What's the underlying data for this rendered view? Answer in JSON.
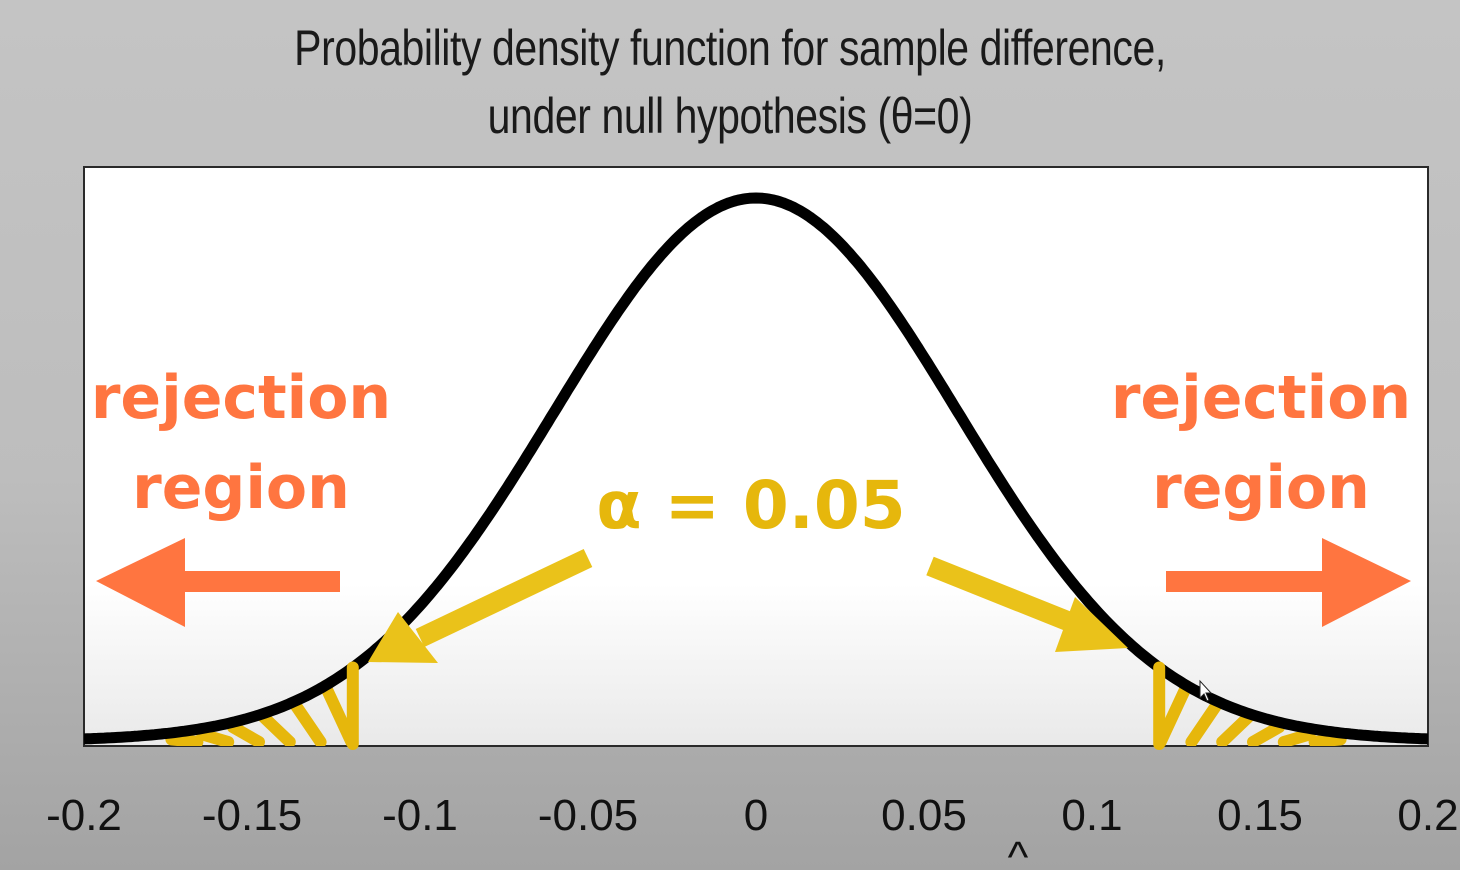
{
  "title_lines": [
    "Probability density function for sample difference,",
    "under null hypothesis (θ=0)"
  ],
  "chart_data": {
    "type": "area",
    "title": "Probability density function for sample difference, under null hypothesis (θ=0)",
    "distribution": "normal",
    "mean": 0,
    "sd": 0.06,
    "xlim": [
      -0.2,
      0.2
    ],
    "xticks": [
      -0.2,
      -0.15,
      -0.1,
      -0.05,
      0,
      0.05,
      0.1,
      0.15,
      0.2
    ],
    "xtick_labels": [
      "-0.2",
      "-0.15",
      "-0.1",
      "-0.05",
      "0",
      "0.05",
      "0.1",
      "0.15",
      "0.2"
    ],
    "critical_values": [
      -0.12,
      0.12
    ],
    "shaded_regions": [
      {
        "from": -0.2,
        "to": -0.12
      },
      {
        "from": 0.12,
        "to": 0.2
      }
    ],
    "annotations": {
      "alpha": "α = 0.05",
      "rejection_left": [
        "rejection",
        "region"
      ],
      "rejection_right": [
        "rejection",
        "region"
      ],
      "xlabel_glyph": "^"
    },
    "colors": {
      "curve": "#000000",
      "rejection": "#ff7540",
      "alpha": "#e6b70c",
      "plot_background": "#ffffff"
    },
    "grid": false,
    "legend": "none"
  }
}
